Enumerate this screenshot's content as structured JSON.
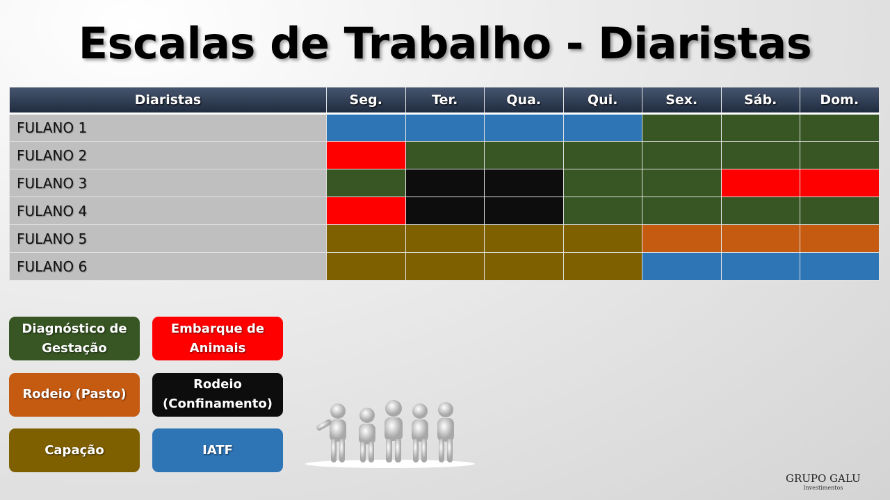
{
  "title": "Escalas de Trabalho - Diaristas",
  "table": {
    "headers": [
      "Diaristas",
      "Seg.",
      "Ter.",
      "Qua.",
      "Qui.",
      "Sex.",
      "Sáb.",
      "Dom."
    ],
    "rows": [
      {
        "name": "FULANO 1",
        "days": [
          "iatf",
          "iatf",
          "iatf",
          "iatf",
          "diag",
          "diag",
          "diag"
        ]
      },
      {
        "name": "FULANO 2",
        "days": [
          "embarque",
          "diag",
          "diag",
          "diag",
          "diag",
          "diag",
          "diag"
        ]
      },
      {
        "name": "FULANO 3",
        "days": [
          "diag",
          "confinamento",
          "confinamento",
          "diag",
          "diag",
          "embarque",
          "embarque"
        ]
      },
      {
        "name": "FULANO 4",
        "days": [
          "embarque",
          "confinamento",
          "confinamento",
          "diag",
          "diag",
          "diag",
          "diag"
        ]
      },
      {
        "name": "FULANO 5",
        "days": [
          "capacao",
          "capacao",
          "capacao",
          "capacao",
          "pasto",
          "pasto",
          "pasto"
        ]
      },
      {
        "name": "FULANO 6",
        "days": [
          "capacao",
          "capacao",
          "capacao",
          "capacao",
          "iatf",
          "iatf",
          "iatf"
        ]
      }
    ]
  },
  "legend": [
    {
      "key": "diag",
      "label": "Diagnóstico de Gestação",
      "color": "#375623"
    },
    {
      "key": "embarque",
      "label": "Embarque de Animais",
      "color": "#FF0000"
    },
    {
      "key": "pasto",
      "label": "Rodeio (Pasto)",
      "color": "#C55A11"
    },
    {
      "key": "confinamento",
      "label": "Rodeio (Confinamento)",
      "color": "#0D0D0D"
    },
    {
      "key": "capacao",
      "label": "Capação",
      "color": "#7F6000"
    },
    {
      "key": "iatf",
      "label": "IATF",
      "color": "#2E75B6"
    }
  ],
  "logo": {
    "name": "GRUPO GALU",
    "sub": "Investimentos"
  }
}
